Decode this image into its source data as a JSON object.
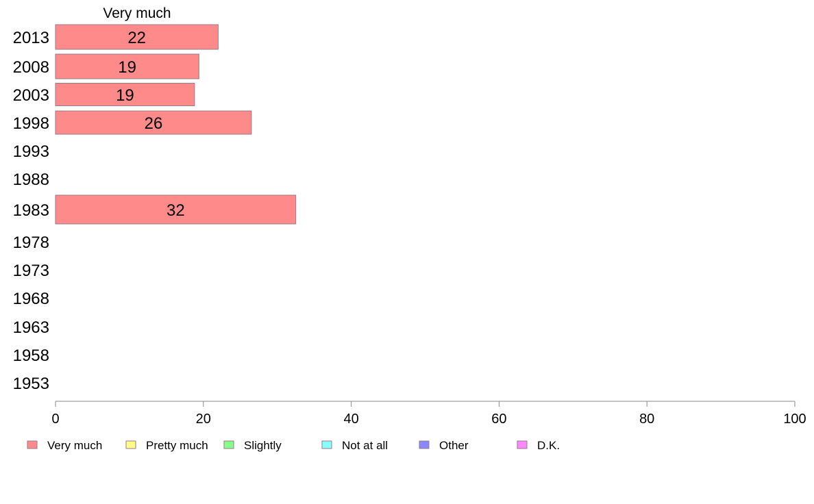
{
  "chart_data": {
    "type": "bar",
    "orientation": "horizontal",
    "stacked": true,
    "column_header": "Very much",
    "categories": [
      "2013",
      "2008",
      "2003",
      "1998",
      "1993",
      "1988",
      "1983",
      "1978",
      "1973",
      "1968",
      "1963",
      "1958",
      "1953"
    ],
    "series": [
      {
        "name": "Very much",
        "color": "#ff8a8a",
        "values": [
          22,
          19.4,
          18.8,
          26.5,
          null,
          null,
          32.5,
          null,
          null,
          null,
          null,
          null,
          null
        ],
        "labels": [
          "22",
          "19",
          "19",
          "26",
          "",
          "",
          "32",
          "",
          "",
          "",
          "",
          "",
          ""
        ]
      },
      {
        "name": "Pretty much",
        "color": "#ffff88",
        "values": [
          null,
          null,
          null,
          null,
          null,
          null,
          null,
          null,
          null,
          null,
          null,
          null,
          null
        ]
      },
      {
        "name": "Slightly",
        "color": "#88ff88",
        "values": [
          null,
          null,
          null,
          null,
          null,
          null,
          null,
          null,
          null,
          null,
          null,
          null,
          null
        ]
      },
      {
        "name": "Not at all",
        "color": "#88ffff",
        "values": [
          null,
          null,
          null,
          null,
          null,
          null,
          null,
          null,
          null,
          null,
          null,
          null,
          null
        ]
      },
      {
        "name": "Other",
        "color": "#8888ff",
        "values": [
          null,
          null,
          null,
          null,
          null,
          null,
          null,
          null,
          null,
          null,
          null,
          null,
          null
        ]
      },
      {
        "name": "D.K.",
        "color": "#ff88ff",
        "values": [
          null,
          null,
          null,
          null,
          null,
          null,
          null,
          null,
          null,
          null,
          null,
          null,
          null
        ]
      }
    ],
    "xlim": [
      0,
      100
    ],
    "xticks": [
      "0",
      "20",
      "40",
      "60",
      "80",
      "100"
    ],
    "grid": false,
    "legend_position": "bottom"
  }
}
